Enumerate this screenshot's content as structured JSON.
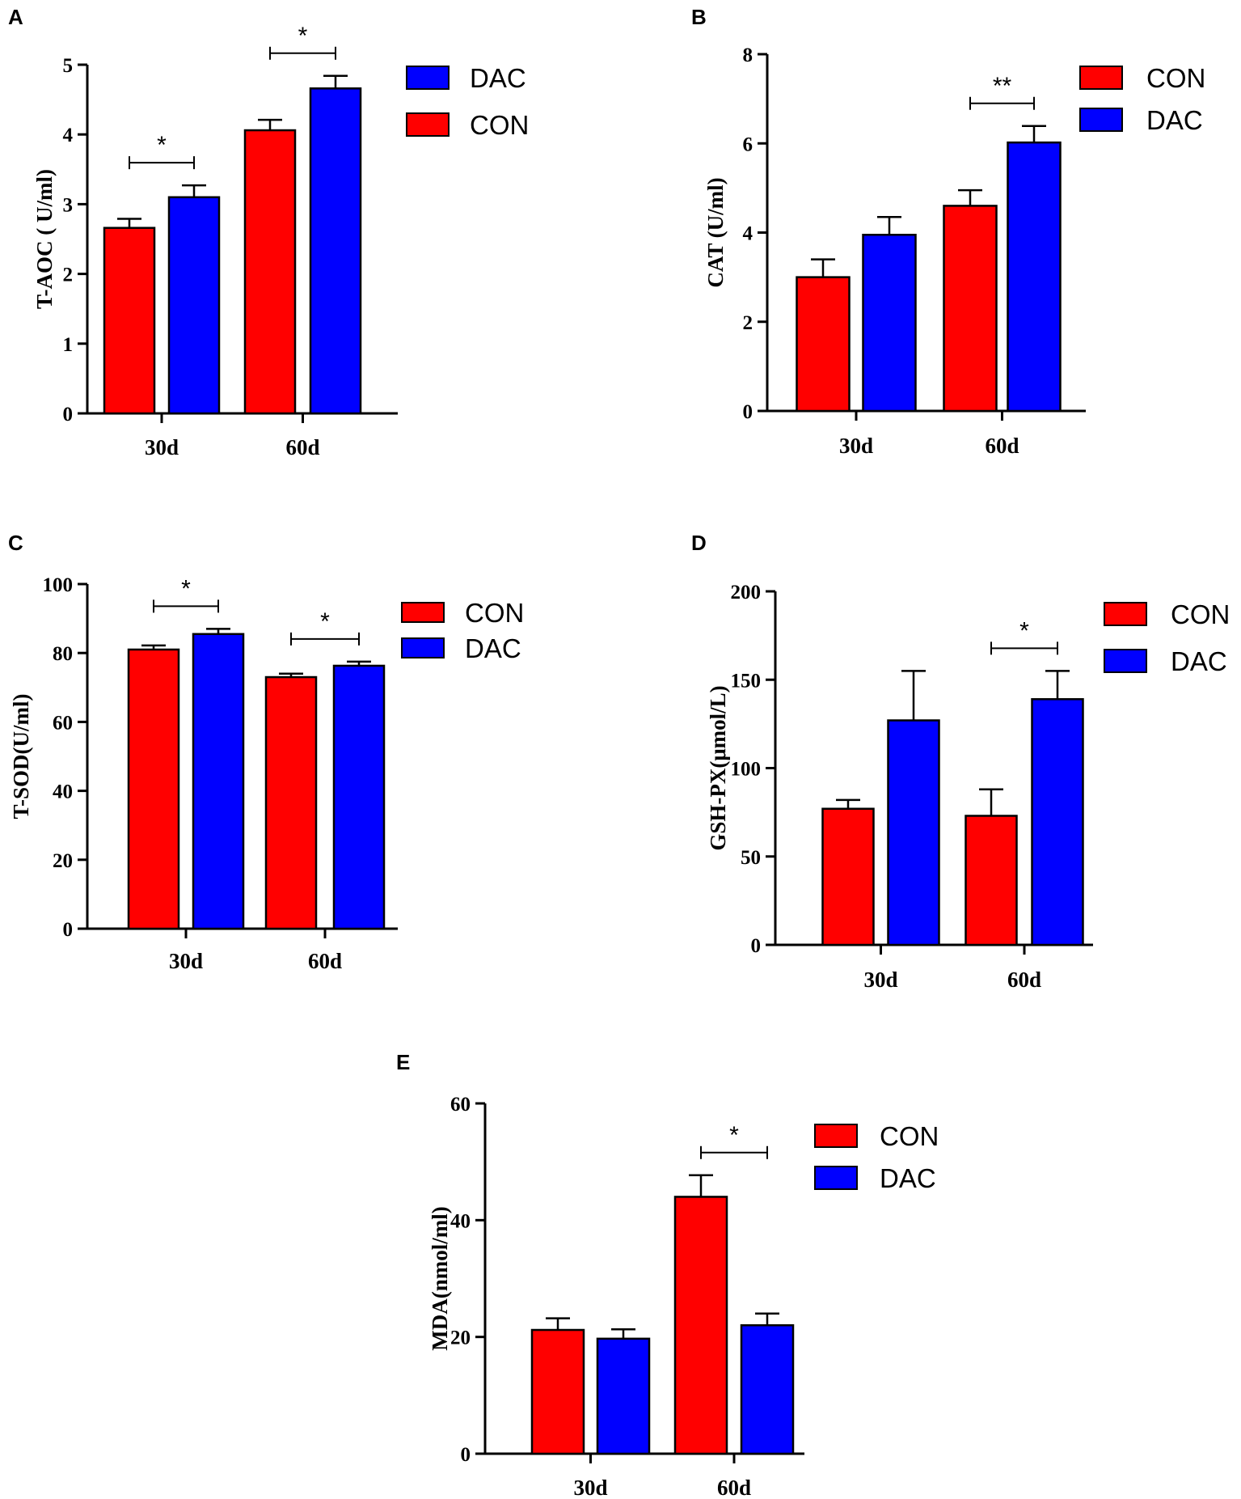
{
  "colors": {
    "CON": "#ff0000",
    "DAC": "#0000ff"
  },
  "chart_data": [
    {
      "panel": "A",
      "type": "bar",
      "ylabel": "T-AOC ( U/ml)",
      "ylim": [
        0,
        5
      ],
      "yticks": [
        "0",
        "1",
        "2",
        "3",
        "4",
        "5"
      ],
      "categories": [
        "30d",
        "60d"
      ],
      "series": [
        {
          "name": "CON",
          "values": [
            2.66,
            4.06
          ],
          "errors": [
            0.13,
            0.15
          ]
        },
        {
          "name": "DAC",
          "values": [
            3.1,
            4.66
          ],
          "errors": [
            0.17,
            0.18
          ]
        }
      ],
      "legend": [
        "DAC",
        "CON"
      ],
      "significance": [
        {
          "category": "30d",
          "label": "*"
        },
        {
          "category": "60d",
          "label": "*"
        }
      ]
    },
    {
      "panel": "B",
      "type": "bar",
      "ylabel": "CAT (U/ml)",
      "ylim": [
        0,
        8
      ],
      "yticks": [
        "0",
        "2",
        "4",
        "6",
        "8"
      ],
      "categories": [
        "30d",
        "60d"
      ],
      "series": [
        {
          "name": "CON",
          "values": [
            3.0,
            4.6
          ],
          "errors": [
            0.4,
            0.35
          ]
        },
        {
          "name": "DAC",
          "values": [
            3.95,
            6.02
          ],
          "errors": [
            0.4,
            0.37
          ]
        }
      ],
      "legend": [
        "CON",
        "DAC"
      ],
      "significance": [
        {
          "category": "60d",
          "label": "**"
        }
      ]
    },
    {
      "panel": "C",
      "type": "bar",
      "ylabel": "T-SOD(U/ml)",
      "ylim": [
        0,
        100
      ],
      "yticks": [
        "0",
        "20",
        "40",
        "60",
        "80",
        "100"
      ],
      "categories": [
        "30d",
        "60d"
      ],
      "series": [
        {
          "name": "CON",
          "values": [
            81,
            73
          ],
          "errors": [
            1.2,
            1.0
          ]
        },
        {
          "name": "DAC",
          "values": [
            85.5,
            76.3
          ],
          "errors": [
            1.5,
            1.2
          ]
        }
      ],
      "legend": [
        "CON",
        "DAC"
      ],
      "significance": [
        {
          "category": "30d",
          "label": "*"
        },
        {
          "category": "60d",
          "label": "*"
        }
      ]
    },
    {
      "panel": "D",
      "type": "bar",
      "ylabel": "GSH-PX(μmol/L)",
      "ylim": [
        0,
        200
      ],
      "yticks": [
        "0",
        "50",
        "100",
        "150",
        "200"
      ],
      "categories": [
        "30d",
        "60d"
      ],
      "series": [
        {
          "name": "CON",
          "values": [
            77,
            73
          ],
          "errors": [
            5,
            15
          ]
        },
        {
          "name": "DAC",
          "values": [
            127,
            139
          ],
          "errors": [
            28,
            16
          ]
        }
      ],
      "legend": [
        "CON",
        "DAC"
      ],
      "significance": [
        {
          "category": "60d",
          "label": "*"
        }
      ]
    },
    {
      "panel": "E",
      "type": "bar",
      "ylabel": "MDA(nmol/ml)",
      "ylim": [
        0,
        60
      ],
      "yticks": [
        "0",
        "20",
        "40",
        "60"
      ],
      "categories": [
        "30d",
        "60d"
      ],
      "series": [
        {
          "name": "CON",
          "values": [
            21.2,
            44
          ],
          "errors": [
            2,
            3.7
          ]
        },
        {
          "name": "DAC",
          "values": [
            19.7,
            22
          ],
          "errors": [
            1.6,
            2
          ]
        }
      ],
      "legend": [
        "CON",
        "DAC"
      ],
      "significance": [
        {
          "category": "60d",
          "label": "*"
        }
      ]
    }
  ]
}
